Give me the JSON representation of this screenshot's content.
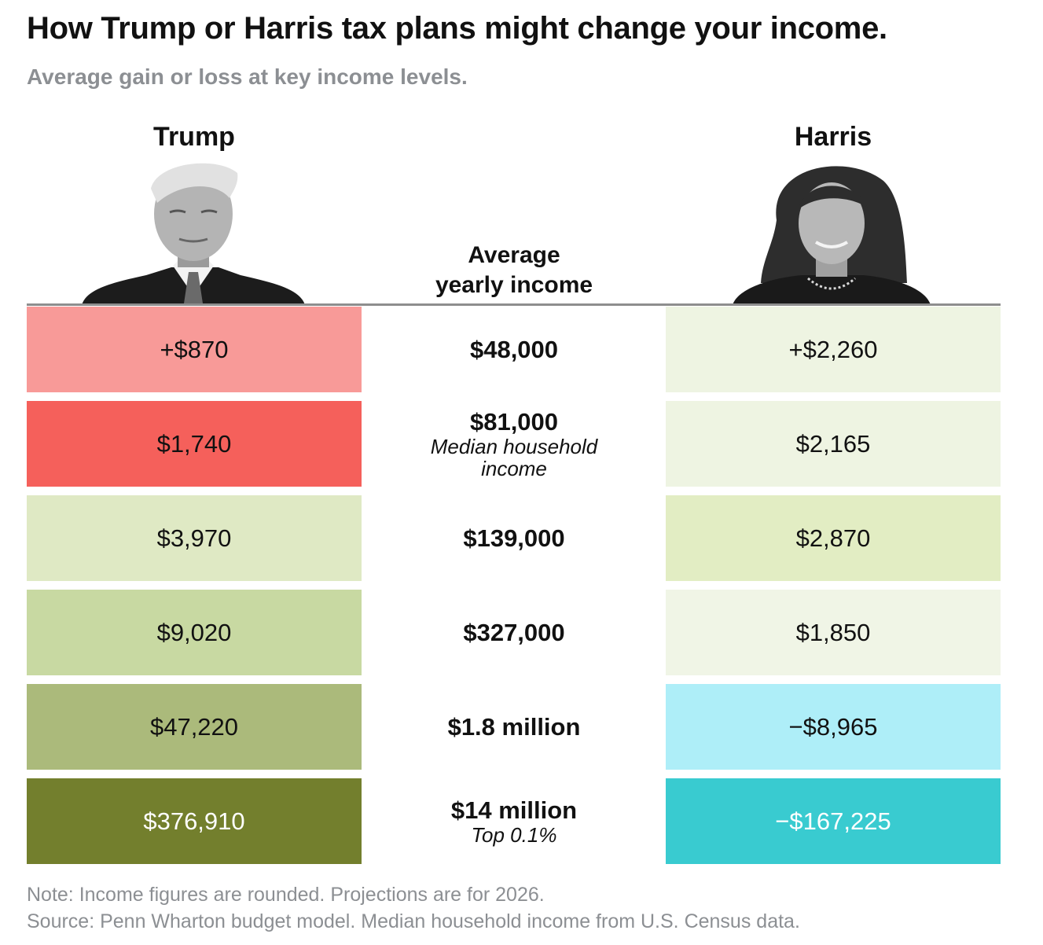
{
  "title": "How Trump or Harris tax plans might change your income.",
  "subtitle": "Average gain or loss at key income levels.",
  "chart_data": {
    "type": "table",
    "title": "How Trump or Harris tax plans might change your income.",
    "subtitle": "Average gain or loss at key income levels.",
    "columns": {
      "trump": "Trump",
      "income": "Average yearly income",
      "harris": "Harris"
    },
    "rows": [
      {
        "income": "$48,000",
        "note": "",
        "trump": "+$870",
        "trump_value": 870,
        "trump_color": "#f89a98",
        "trump_text": "#111111",
        "harris": "+$2,260",
        "harris_value": 2260,
        "harris_color": "#eef4e2",
        "harris_text": "#111111"
      },
      {
        "income": "$81,000",
        "note": "Median household income",
        "trump": "$1,740",
        "trump_value": 1740,
        "trump_color": "#f5605b",
        "trump_text": "#111111",
        "harris": "$2,165",
        "harris_value": 2165,
        "harris_color": "#eef4e2",
        "harris_text": "#111111"
      },
      {
        "income": "$139,000",
        "note": "",
        "trump": "$3,970",
        "trump_value": 3970,
        "trump_color": "#dfe9c4",
        "trump_text": "#111111",
        "harris": "$2,870",
        "harris_value": 2870,
        "harris_color": "#e2edc3",
        "harris_text": "#111111"
      },
      {
        "income": "$327,000",
        "note": "",
        "trump": "$9,020",
        "trump_value": 9020,
        "trump_color": "#c8d9a2",
        "trump_text": "#111111",
        "harris": "$1,850",
        "harris_value": 1850,
        "harris_color": "#f0f5e6",
        "harris_text": "#111111"
      },
      {
        "income": "$1.8 million",
        "note": "",
        "trump": "$47,220",
        "trump_value": 47220,
        "trump_color": "#abba7b",
        "trump_text": "#111111",
        "harris": "−$8,965",
        "harris_value": -8965,
        "harris_color": "#aeeef8",
        "harris_text": "#111111"
      },
      {
        "income": "$14 million",
        "note": "Top 0.1%",
        "trump": "$376,910",
        "trump_value": 376910,
        "trump_color": "#737f2d",
        "trump_text": "#ffffff",
        "harris": "−$167,225",
        "harris_value": -167225,
        "harris_color": "#39cbd0",
        "harris_text": "#ffffff"
      }
    ]
  },
  "footer": {
    "note": "Note: Income figures are rounded. Projections are for 2026.",
    "source": "Source: Penn Wharton budget model. Median household income from U.S. Census data."
  }
}
